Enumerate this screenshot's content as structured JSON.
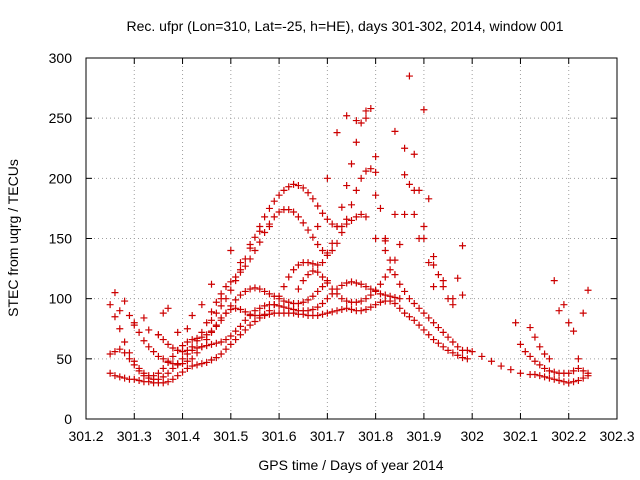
{
  "chart_data": {
    "type": "scatter",
    "title": "Rec. ufpr (Lon=310, Lat=-25, h=HE), days 301-302, 2014, window 001",
    "xlabel": "GPS time / Days of year 2014",
    "ylabel": "STEC from uqrg / TECUs",
    "xlim": [
      301.2,
      302.3
    ],
    "ylim": [
      0,
      300
    ],
    "xticks": [
      "301.2",
      "301.3",
      "301.4",
      "301.5",
      "301.6",
      "301.7",
      "301.8",
      "301.9",
      "302",
      "302.1",
      "302.2",
      "302.3"
    ],
    "yticks": [
      "0",
      "50",
      "100",
      "150",
      "200",
      "250",
      "300"
    ],
    "grid": true,
    "legend": "none",
    "marker": "plus",
    "color": "#cc0000",
    "series": [
      {
        "x": [
          301.25,
          301.26,
          301.27,
          301.28,
          301.29,
          301.3,
          301.31,
          301.32,
          301.33,
          301.34,
          301.35,
          301.36,
          301.37,
          301.38,
          301.39,
          301.4,
          301.41,
          301.42,
          301.43,
          301.44,
          301.45,
          301.46,
          301.47,
          301.48,
          301.49,
          301.5,
          301.51,
          301.52,
          301.53,
          301.54,
          301.55,
          301.56,
          301.57,
          301.58,
          301.59,
          301.6,
          301.61,
          301.62,
          301.63,
          301.64,
          301.65,
          301.66,
          301.67,
          301.68,
          301.69,
          301.7,
          301.71,
          301.72,
          301.73,
          301.74,
          301.75,
          301.76,
          301.77,
          301.78,
          301.79,
          301.8,
          301.81,
          301.82,
          301.83,
          301.84,
          301.85,
          301.86,
          301.87,
          301.88,
          301.89,
          301.9,
          301.91,
          301.92,
          301.93,
          301.94,
          301.95,
          301.96,
          301.97,
          301.98,
          301.99
        ],
        "y": [
          38,
          36,
          35,
          34,
          33,
          33,
          32,
          31,
          31,
          30,
          30,
          30,
          31,
          33,
          36,
          39,
          42,
          44,
          45,
          46,
          47,
          49,
          51,
          54,
          58,
          62,
          66,
          70,
          74,
          78,
          81,
          84,
          86,
          87,
          88,
          88,
          88,
          88,
          88,
          87,
          87,
          86,
          86,
          86,
          87,
          88,
          89,
          90,
          91,
          92,
          91,
          90,
          90,
          91,
          93,
          95,
          97,
          98,
          98,
          96,
          92,
          88,
          85,
          82,
          78,
          74,
          70,
          66,
          63,
          60,
          57,
          55,
          53,
          51,
          50
        ]
      },
      {
        "x": [
          301.25,
          301.26,
          301.27,
          301.28,
          301.29,
          301.3,
          301.31,
          301.32,
          301.33,
          301.34,
          301.35,
          301.36,
          301.37,
          301.38,
          301.39,
          301.4,
          301.41,
          301.42,
          301.43,
          301.44,
          301.45,
          301.46,
          301.47,
          301.48,
          301.49,
          301.5,
          301.51,
          301.52,
          301.53,
          301.54,
          301.55,
          301.56,
          301.57,
          301.58,
          301.59,
          301.6,
          301.61,
          301.62,
          301.63,
          301.64,
          301.65,
          301.66,
          301.67,
          301.68,
          301.69,
          301.7,
          301.71,
          301.72,
          301.73,
          301.74,
          301.75,
          301.76,
          301.77,
          301.78,
          301.79,
          301.8,
          301.81,
          301.82,
          301.83,
          301.84,
          301.85
        ],
        "y": [
          54,
          56,
          58,
          55,
          50,
          45,
          40,
          36,
          34,
          33,
          33,
          35,
          38,
          42,
          46,
          50,
          54,
          57,
          59,
          60,
          61,
          62,
          63,
          64,
          66,
          69,
          73,
          77,
          82,
          86,
          90,
          92,
          94,
          95,
          95,
          94,
          93,
          92,
          91,
          90,
          90,
          90,
          91,
          93,
          96,
          100,
          104,
          108,
          111,
          113,
          114,
          113,
          112,
          110,
          108,
          106,
          104,
          103,
          102,
          101,
          100
        ]
      },
      {
        "x": [
          301.26,
          301.27,
          301.28,
          301.29,
          301.3,
          301.31,
          301.32,
          301.33,
          301.34,
          301.35,
          301.36,
          301.37,
          301.38,
          301.39,
          301.4,
          301.41,
          301.42,
          301.43,
          301.44,
          301.45,
          301.46,
          301.47,
          301.48,
          301.49,
          301.5,
          301.51,
          301.52,
          301.53,
          301.54,
          301.55,
          301.56,
          301.57,
          301.58,
          301.59,
          301.6,
          301.61,
          301.62,
          301.63,
          301.64,
          301.65,
          301.66,
          301.67,
          301.68,
          301.69,
          301.7
        ],
        "y": [
          85,
          75,
          64,
          55,
          48,
          42,
          38,
          36,
          36,
          38,
          42,
          47,
          52,
          57,
          61,
          64,
          66,
          67,
          68,
          70,
          73,
          77,
          82,
          88,
          94,
          99,
          103,
          106,
          108,
          109,
          108,
          106,
          104,
          102,
          100,
          98,
          97,
          96,
          96,
          97,
          99,
          102,
          106,
          110,
          115
        ]
      },
      {
        "x": [
          301.43,
          301.44,
          301.45,
          301.46,
          301.47,
          301.48,
          301.49,
          301.5,
          301.51,
          301.52,
          301.53,
          301.54,
          301.55,
          301.56,
          301.57,
          301.58,
          301.59,
          301.6,
          301.61,
          301.62,
          301.63,
          301.64,
          301.65,
          301.66,
          301.67,
          301.68,
          301.69,
          301.7,
          301.71,
          301.72,
          301.73,
          301.74,
          301.75,
          301.76,
          301.77,
          301.78,
          301.79,
          301.8,
          301.81,
          301.82,
          301.83,
          301.84,
          301.85,
          301.86,
          301.87,
          301.88,
          301.89,
          301.9,
          301.91,
          301.92,
          301.93,
          301.94,
          301.95,
          301.96,
          301.97,
          301.98
        ],
        "y": [
          55,
          60,
          66,
          72,
          78,
          84,
          88,
          91,
          92,
          91,
          89,
          87,
          86,
          86,
          87,
          90,
          95,
          102,
          110,
          118,
          124,
          128,
          130,
          130,
          129,
          128,
          130,
          136,
          146,
          160,
          176,
          194,
          212,
          230,
          246,
          256,
          258,
          218,
          175,
          148,
          132,
          120,
          112,
          106,
          100,
          96,
          92,
          88,
          84,
          80,
          76,
          72,
          68,
          64,
          60,
          57
        ]
      },
      {
        "x": [
          301.35,
          301.36,
          301.37,
          301.38,
          301.39,
          301.4,
          301.41,
          301.42,
          301.43,
          301.44,
          301.45,
          301.46,
          301.47,
          301.48,
          301.49,
          301.5,
          301.51,
          301.52,
          301.53,
          301.54,
          301.55,
          301.56,
          301.57,
          301.58,
          301.59,
          301.6,
          301.61,
          301.62,
          301.63,
          301.64,
          301.65,
          301.66,
          301.67,
          301.68,
          301.69,
          301.7,
          301.71,
          301.72,
          301.73,
          301.74,
          301.75,
          301.76,
          301.77,
          301.78,
          301.79,
          301.8
        ],
        "y": [
          70,
          66,
          62,
          59,
          57,
          56,
          57,
          60,
          65,
          72,
          80,
          89,
          97,
          104,
          110,
          114,
          118,
          122,
          127,
          133,
          140,
          147,
          155,
          162,
          168,
          172,
          174,
          174,
          172,
          168,
          163,
          157,
          151,
          145,
          140,
          138,
          140,
          146,
          155,
          166,
          178,
          190,
          200,
          206,
          208,
          205
        ]
      },
      {
        "x": [
          301.46,
          301.47,
          301.48,
          301.49,
          301.5,
          301.51,
          301.52,
          301.53,
          301.54,
          301.55,
          301.56,
          301.57,
          301.58,
          301.59,
          301.6,
          301.61,
          301.62,
          301.63,
          301.64,
          301.65,
          301.66,
          301.67,
          301.68,
          301.69,
          301.7,
          301.71,
          301.72,
          301.73,
          301.74,
          301.75,
          301.76,
          301.77
        ],
        "y": [
          82,
          88,
          94,
          100,
          107,
          115,
          124,
          133,
          142,
          151,
          160,
          168,
          175,
          181,
          186,
          190,
          193,
          195,
          194,
          192,
          188,
          183,
          177,
          171,
          166,
          162,
          160,
          160,
          162,
          165,
          168,
          170
        ]
      },
      {
        "x": [
          301.78,
          301.8,
          301.82,
          301.84,
          301.86,
          301.88,
          301.9,
          301.92,
          301.94,
          301.96,
          301.98
        ],
        "y": [
          168,
          150,
          140,
          170,
          203,
          170,
          150,
          128,
          115,
          100,
          144
        ]
      },
      {
        "x": [
          301.64,
          301.65,
          301.66,
          301.67,
          301.68,
          301.69,
          301.7,
          301.71,
          301.72,
          301.73,
          301.74,
          301.75,
          301.76,
          301.77,
          301.78,
          301.79,
          301.8,
          301.81,
          301.82,
          301.83,
          301.84,
          301.85,
          301.86,
          301.87,
          301.88,
          301.89,
          301.9,
          301.91,
          301.92
        ],
        "y": [
          108,
          115,
          120,
          123,
          122,
          118,
          113,
          108,
          104,
          100,
          98,
          97,
          97,
          98,
          100,
          103,
          107,
          112,
          118,
          124,
          132,
          145,
          170,
          195,
          220,
          190,
          160,
          130,
          110
        ]
      },
      {
        "x": [
          301.68,
          301.7,
          301.72,
          301.74,
          301.76,
          301.78,
          301.8,
          301.82,
          301.84,
          301.86,
          301.87,
          301.88,
          301.89,
          301.9,
          301.91,
          301.92,
          301.93,
          301.94,
          301.95,
          301.96,
          301.97,
          301.98
        ],
        "y": [
          160,
          200,
          238,
          252,
          248,
          250,
          186,
          150,
          239,
          225,
          285,
          190,
          150,
          257,
          183,
          135,
          120,
          110,
          100,
          95,
          117,
          103
        ]
      },
      {
        "x": [
          301.99,
          302.0,
          302.02,
          302.04,
          302.06,
          302.08,
          302.1,
          302.12,
          302.13,
          302.14,
          302.15,
          302.16,
          302.17,
          302.18,
          302.19,
          302.2,
          302.21,
          302.22,
          302.23,
          302.24
        ],
        "y": [
          57,
          56,
          52,
          48,
          44,
          41,
          38,
          37,
          37,
          36,
          35,
          34,
          33,
          32,
          31,
          30,
          31,
          32,
          34,
          36
        ]
      },
      {
        "x": [
          302.09,
          302.1,
          302.11,
          302.12,
          302.13,
          302.14,
          302.15,
          302.16,
          302.17,
          302.18,
          302.19,
          302.2,
          302.21,
          302.22,
          302.23,
          302.24
        ],
        "y": [
          80,
          62,
          56,
          52,
          48,
          45,
          42,
          40,
          39,
          38,
          38,
          38,
          40,
          42,
          40,
          38
        ]
      },
      {
        "x": [
          302.12,
          302.13,
          302.14,
          302.15,
          302.16,
          302.17,
          302.18,
          302.19,
          302.2,
          302.21,
          302.22,
          302.23,
          302.24
        ],
        "y": [
          76,
          68,
          60,
          54,
          50,
          115,
          90,
          95,
          80,
          73,
          50,
          88,
          107
        ]
      },
      {
        "x": [
          301.25,
          301.26,
          301.27,
          301.28,
          301.29,
          301.3,
          301.31,
          301.32,
          301.33,
          301.34,
          301.35,
          301.36,
          301.37,
          301.38,
          301.39,
          301.4,
          301.41,
          301.42
        ],
        "y": [
          95,
          105,
          90,
          98,
          86,
          78,
          72,
          65,
          60,
          56,
          52,
          50,
          48,
          46,
          45,
          46,
          48,
          50
        ]
      },
      {
        "x": [
          301.3,
          301.32,
          301.33,
          301.35,
          301.36,
          301.37,
          301.39,
          301.41,
          301.42,
          301.44,
          301.46,
          301.48,
          301.5,
          301.52,
          301.54,
          301.56,
          301.58
        ],
        "y": [
          80,
          84,
          74,
          70,
          88,
          92,
          72,
          75,
          86,
          95,
          112,
          100,
          140,
          130,
          145,
          156,
          160
        ]
      }
    ]
  }
}
